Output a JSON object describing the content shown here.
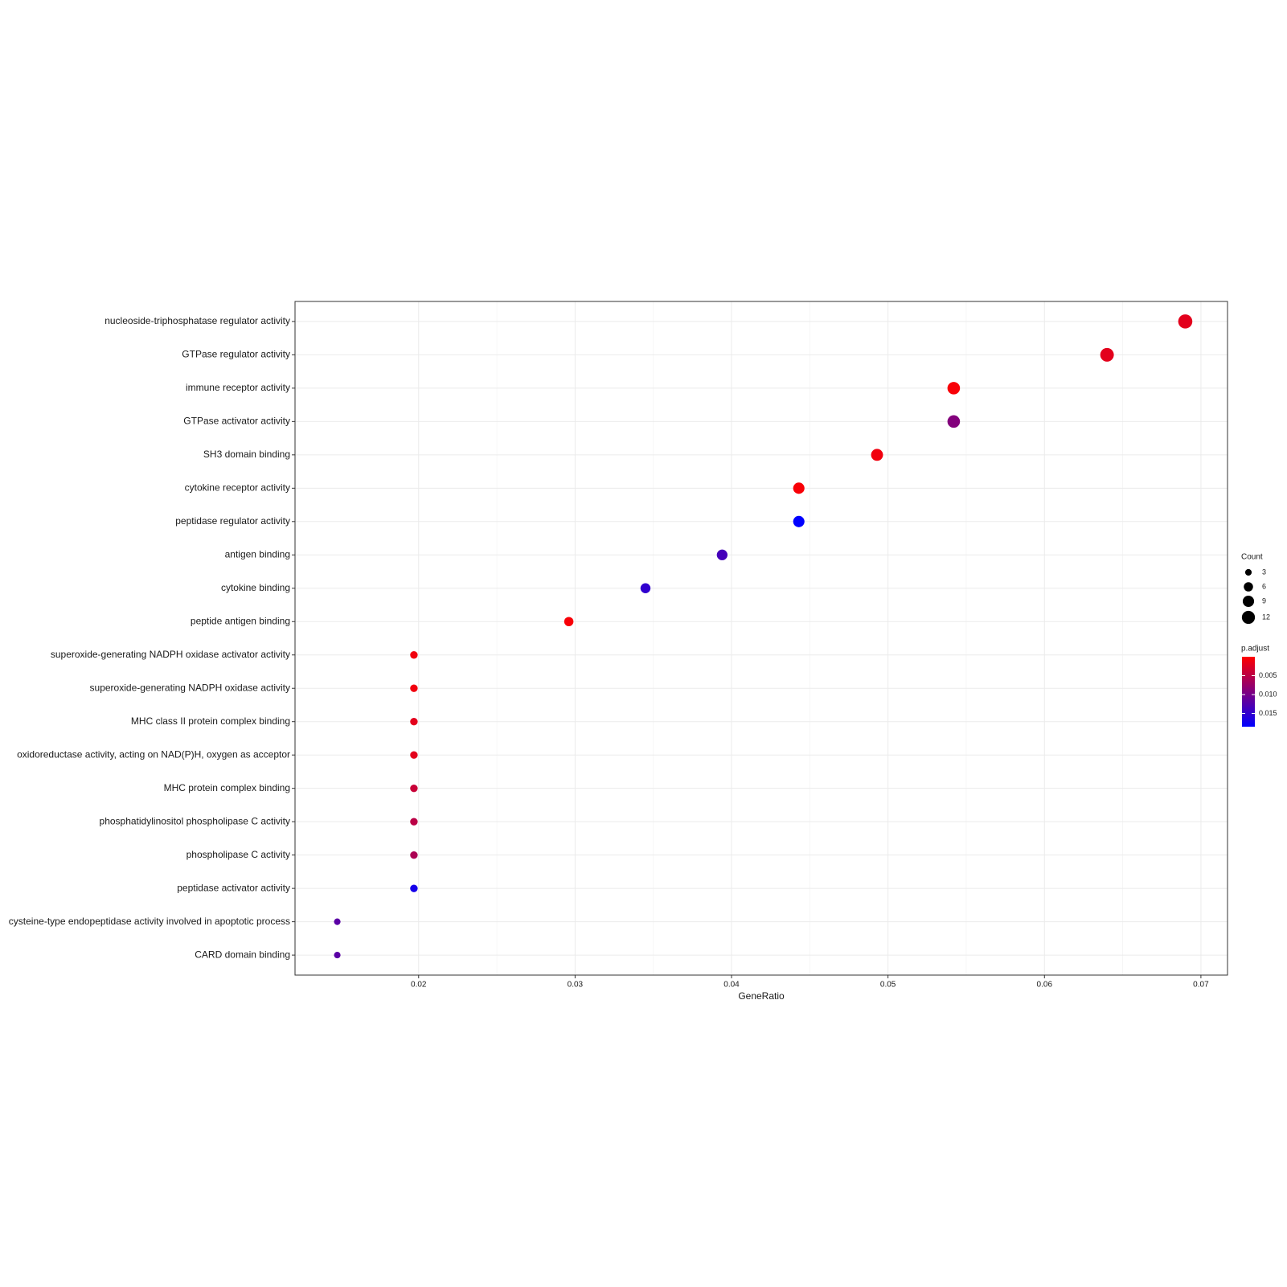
{
  "chart_data": {
    "type": "dot",
    "xlabel": "GeneRatio",
    "categories": [
      "nucleoside-triphosphatase regulator activity",
      "GTPase regulator activity",
      "immune receptor activity",
      "GTPase activator activity",
      "SH3 domain binding",
      "cytokine receptor activity",
      "peptidase regulator activity",
      "antigen binding",
      "cytokine binding",
      "peptide antigen binding",
      "superoxide-generating NADPH oxidase activator activity",
      "superoxide-generating NADPH oxidase activity",
      "MHC class II protein complex binding",
      "oxidoreductase activity, acting on NAD(P)H, oxygen as acceptor",
      "MHC protein complex binding",
      "phosphatidylinositol phospholipase C activity",
      "phospholipase C activity",
      "peptidase activator activity",
      "cysteine-type endopeptidase activity involved in apoptotic process",
      "CARD domain binding"
    ],
    "values": [
      0.069,
      0.064,
      0.0542,
      0.0542,
      0.0493,
      0.0443,
      0.0443,
      0.0394,
      0.0345,
      0.0296,
      0.0197,
      0.0197,
      0.0197,
      0.0197,
      0.0197,
      0.0197,
      0.0197,
      0.0197,
      0.0148,
      0.0148
    ],
    "size_title": "Count",
    "sizes": [
      14,
      13,
      11,
      11,
      10,
      9,
      9,
      8,
      7,
      6,
      4,
      4,
      4,
      4,
      4,
      4,
      4,
      4,
      3,
      3
    ],
    "size_ticks": [
      3,
      6,
      9,
      12
    ],
    "color_title": "p.adjust",
    "color_values": [
      0.002,
      0.002,
      0.0005,
      0.009,
      0.001,
      0.0005,
      0.0185,
      0.0135,
      0.015,
      0.0005,
      0.001,
      0.001,
      0.002,
      0.002,
      0.004,
      0.005,
      0.006,
      0.017,
      0.012,
      0.012
    ],
    "color_low": "#ff0000",
    "color_high": "#0000ff",
    "color_lim": [
      0,
      0.0185
    ],
    "color_ticks": [
      0.005,
      {
        "value": 0.01,
        "label": "0.010"
      },
      0.015
    ],
    "xlim": [
      0.0121,
      0.0717
    ],
    "xticks": [
      0.02,
      0.03,
      0.04,
      0.05,
      0.06,
      0.07
    ],
    "grid": true
  }
}
